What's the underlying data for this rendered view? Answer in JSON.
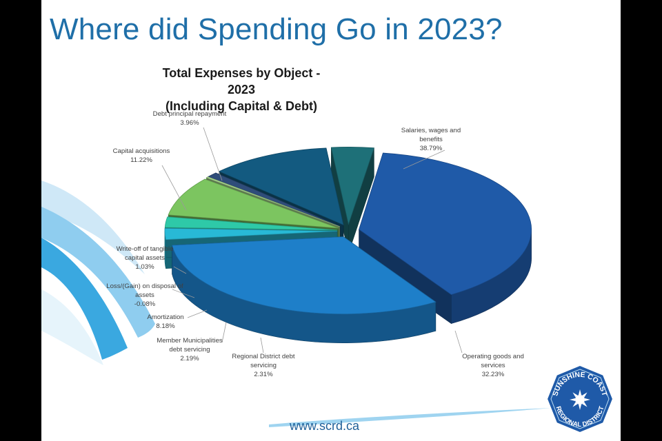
{
  "slide": {
    "title": "Where did Spending Go in 2023?",
    "footer_url": "www.scrd.ca",
    "logo": {
      "text_top": "SUNSHINE COAST",
      "text_bottom": "REGIONAL DISTRICT"
    }
  },
  "chart_data": {
    "type": "pie",
    "variant": "3d-exploded",
    "title": "Total Expenses by Object - 2023",
    "subtitle": "(Including Capital & Debt)",
    "slices": [
      {
        "label": "Salaries, wages and benefits",
        "value": 38.79,
        "value_label": "38.79%",
        "color": "#1f5aa8"
      },
      {
        "label": "Operating goods and services",
        "value": 32.23,
        "value_label": "32.23%",
        "color": "#1e7fc9"
      },
      {
        "label": "Regional District debt servicing",
        "value": 2.31,
        "value_label": "2.31%",
        "color": "#28b9d6"
      },
      {
        "label": "Member Municipalities debt servicing",
        "value": 2.19,
        "value_label": "2.19%",
        "color": "#2ec9a8"
      },
      {
        "label": "Amortization",
        "value": 8.18,
        "value_label": "8.18%",
        "color": "#7cc560"
      },
      {
        "label": "Loss/(Gain) on disposal of assets",
        "value": -0.08,
        "value_label": "-0.08%",
        "color": "#a9d98f"
      },
      {
        "label": "Write-off of tangible capital assets",
        "value": 1.03,
        "value_label": "1.03%",
        "color": "#2f4d7a"
      },
      {
        "label": "Capital acquisitions",
        "value": 11.22,
        "value_label": "11.22%",
        "color": "#135a80"
      },
      {
        "label": "Debt principal repayment",
        "value": 3.96,
        "value_label": "3.96%",
        "color": "#1e7078"
      }
    ]
  }
}
